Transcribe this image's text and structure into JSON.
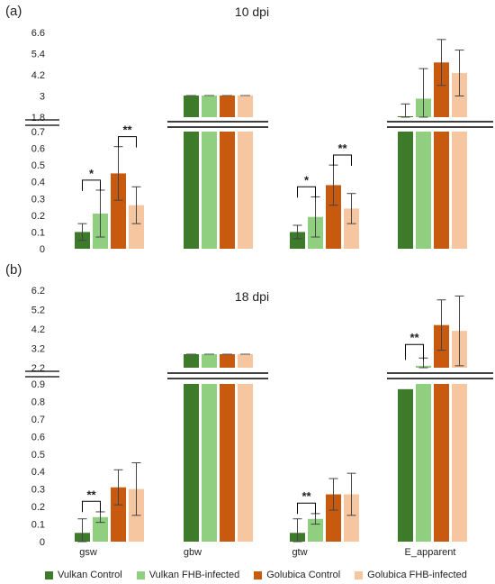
{
  "chart_data": [
    {
      "type": "bar",
      "panel_label": "(a)",
      "title": "10 dpi",
      "categories": [
        "gsw",
        "gbw",
        "gtw",
        "E_apparent"
      ],
      "axis_break": true,
      "lower_yticks": [
        "0",
        "0.1",
        "0.2",
        "0.3",
        "0.4",
        "0.5",
        "0.6",
        "0.7"
      ],
      "upper_yticks": [
        "1.8",
        "3",
        "4.2",
        "5.4",
        "6.6"
      ],
      "lower_ylim": [
        0,
        0.7
      ],
      "upper_ylim": [
        1.8,
        6.6
      ],
      "series": [
        {
          "name": "Vulkan Control",
          "values": [
            0.1,
            null,
            0.1,
            1.85
          ],
          "errors": [
            0.05,
            null,
            0.04,
            0.7
          ]
        },
        {
          "name": "Vulkan FHB-infected",
          "values": [
            0.21,
            null,
            0.19,
            2.85
          ],
          "errors": [
            0.14,
            null,
            0.12,
            1.7
          ]
        },
        {
          "name": "Golubica Control",
          "values": [
            0.45,
            null,
            0.38,
            4.9
          ],
          "errors": [
            0.16,
            null,
            0.12,
            1.3
          ]
        },
        {
          "name": "Golubica FHB-infected",
          "values": [
            0.26,
            null,
            0.24,
            4.3
          ],
          "errors": [
            0.11,
            null,
            0.09,
            1.3
          ]
        }
      ],
      "gbw_broken_top": 2.9,
      "significance": [
        {
          "category": "gsw",
          "pair": [
            0,
            1
          ],
          "label": "*"
        },
        {
          "category": "gsw",
          "pair": [
            2,
            3
          ],
          "label": "**"
        },
        {
          "category": "gtw",
          "pair": [
            0,
            1
          ],
          "label": "*"
        },
        {
          "category": "gtw",
          "pair": [
            2,
            3
          ],
          "label": "**"
        }
      ]
    },
    {
      "type": "bar",
      "panel_label": "(b)",
      "title": "18 dpi",
      "categories": [
        "gsw",
        "gbw",
        "gtw",
        "E_apparent"
      ],
      "axis_break": true,
      "lower_yticks": [
        "0",
        "0.1",
        "0.2",
        "0.3",
        "0.4",
        "0.5",
        "0.6",
        "0.7",
        "0.8",
        "0.9"
      ],
      "upper_yticks": [
        "2.2",
        "3.2",
        "4.2",
        "5.2",
        "6.2"
      ],
      "lower_ylim": [
        0,
        0.9
      ],
      "upper_ylim": [
        2.2,
        6.2
      ],
      "series": [
        {
          "name": "Vulkan Control",
          "values": [
            0.05,
            null,
            0.05,
            0.87
          ],
          "errors": [
            0.08,
            null,
            0.08,
            null
          ]
        },
        {
          "name": "Vulkan FHB-infected",
          "values": [
            0.14,
            null,
            0.13,
            2.3
          ],
          "errors": [
            0.03,
            null,
            0.03,
            0.4
          ]
        },
        {
          "name": "Golubica Control",
          "values": [
            0.31,
            null,
            0.27,
            4.4
          ],
          "errors": [
            0.1,
            null,
            0.09,
            1.3
          ]
        },
        {
          "name": "Golubica FHB-infected",
          "values": [
            0.3,
            null,
            0.27,
            4.1
          ],
          "errors": [
            0.15,
            null,
            0.12,
            1.8
          ]
        }
      ],
      "gbw_broken_top": 2.9,
      "significance": [
        {
          "category": "gsw",
          "pair": [
            0,
            1
          ],
          "label": "**"
        },
        {
          "category": "gtw",
          "pair": [
            0,
            1
          ],
          "label": "**"
        },
        {
          "category": "E_apparent",
          "pair": [
            0,
            1
          ],
          "label": "**"
        }
      ]
    }
  ],
  "legend": [
    {
      "name": "Vulkan Control",
      "color": "#3d7a2a"
    },
    {
      "name": "Vulkan FHB-infected",
      "color": "#8fcf7f"
    },
    {
      "name": "Golubica Control",
      "color": "#c85a10"
    },
    {
      "name": "Golubica FHB-infected",
      "color": "#f6c6a0"
    }
  ]
}
